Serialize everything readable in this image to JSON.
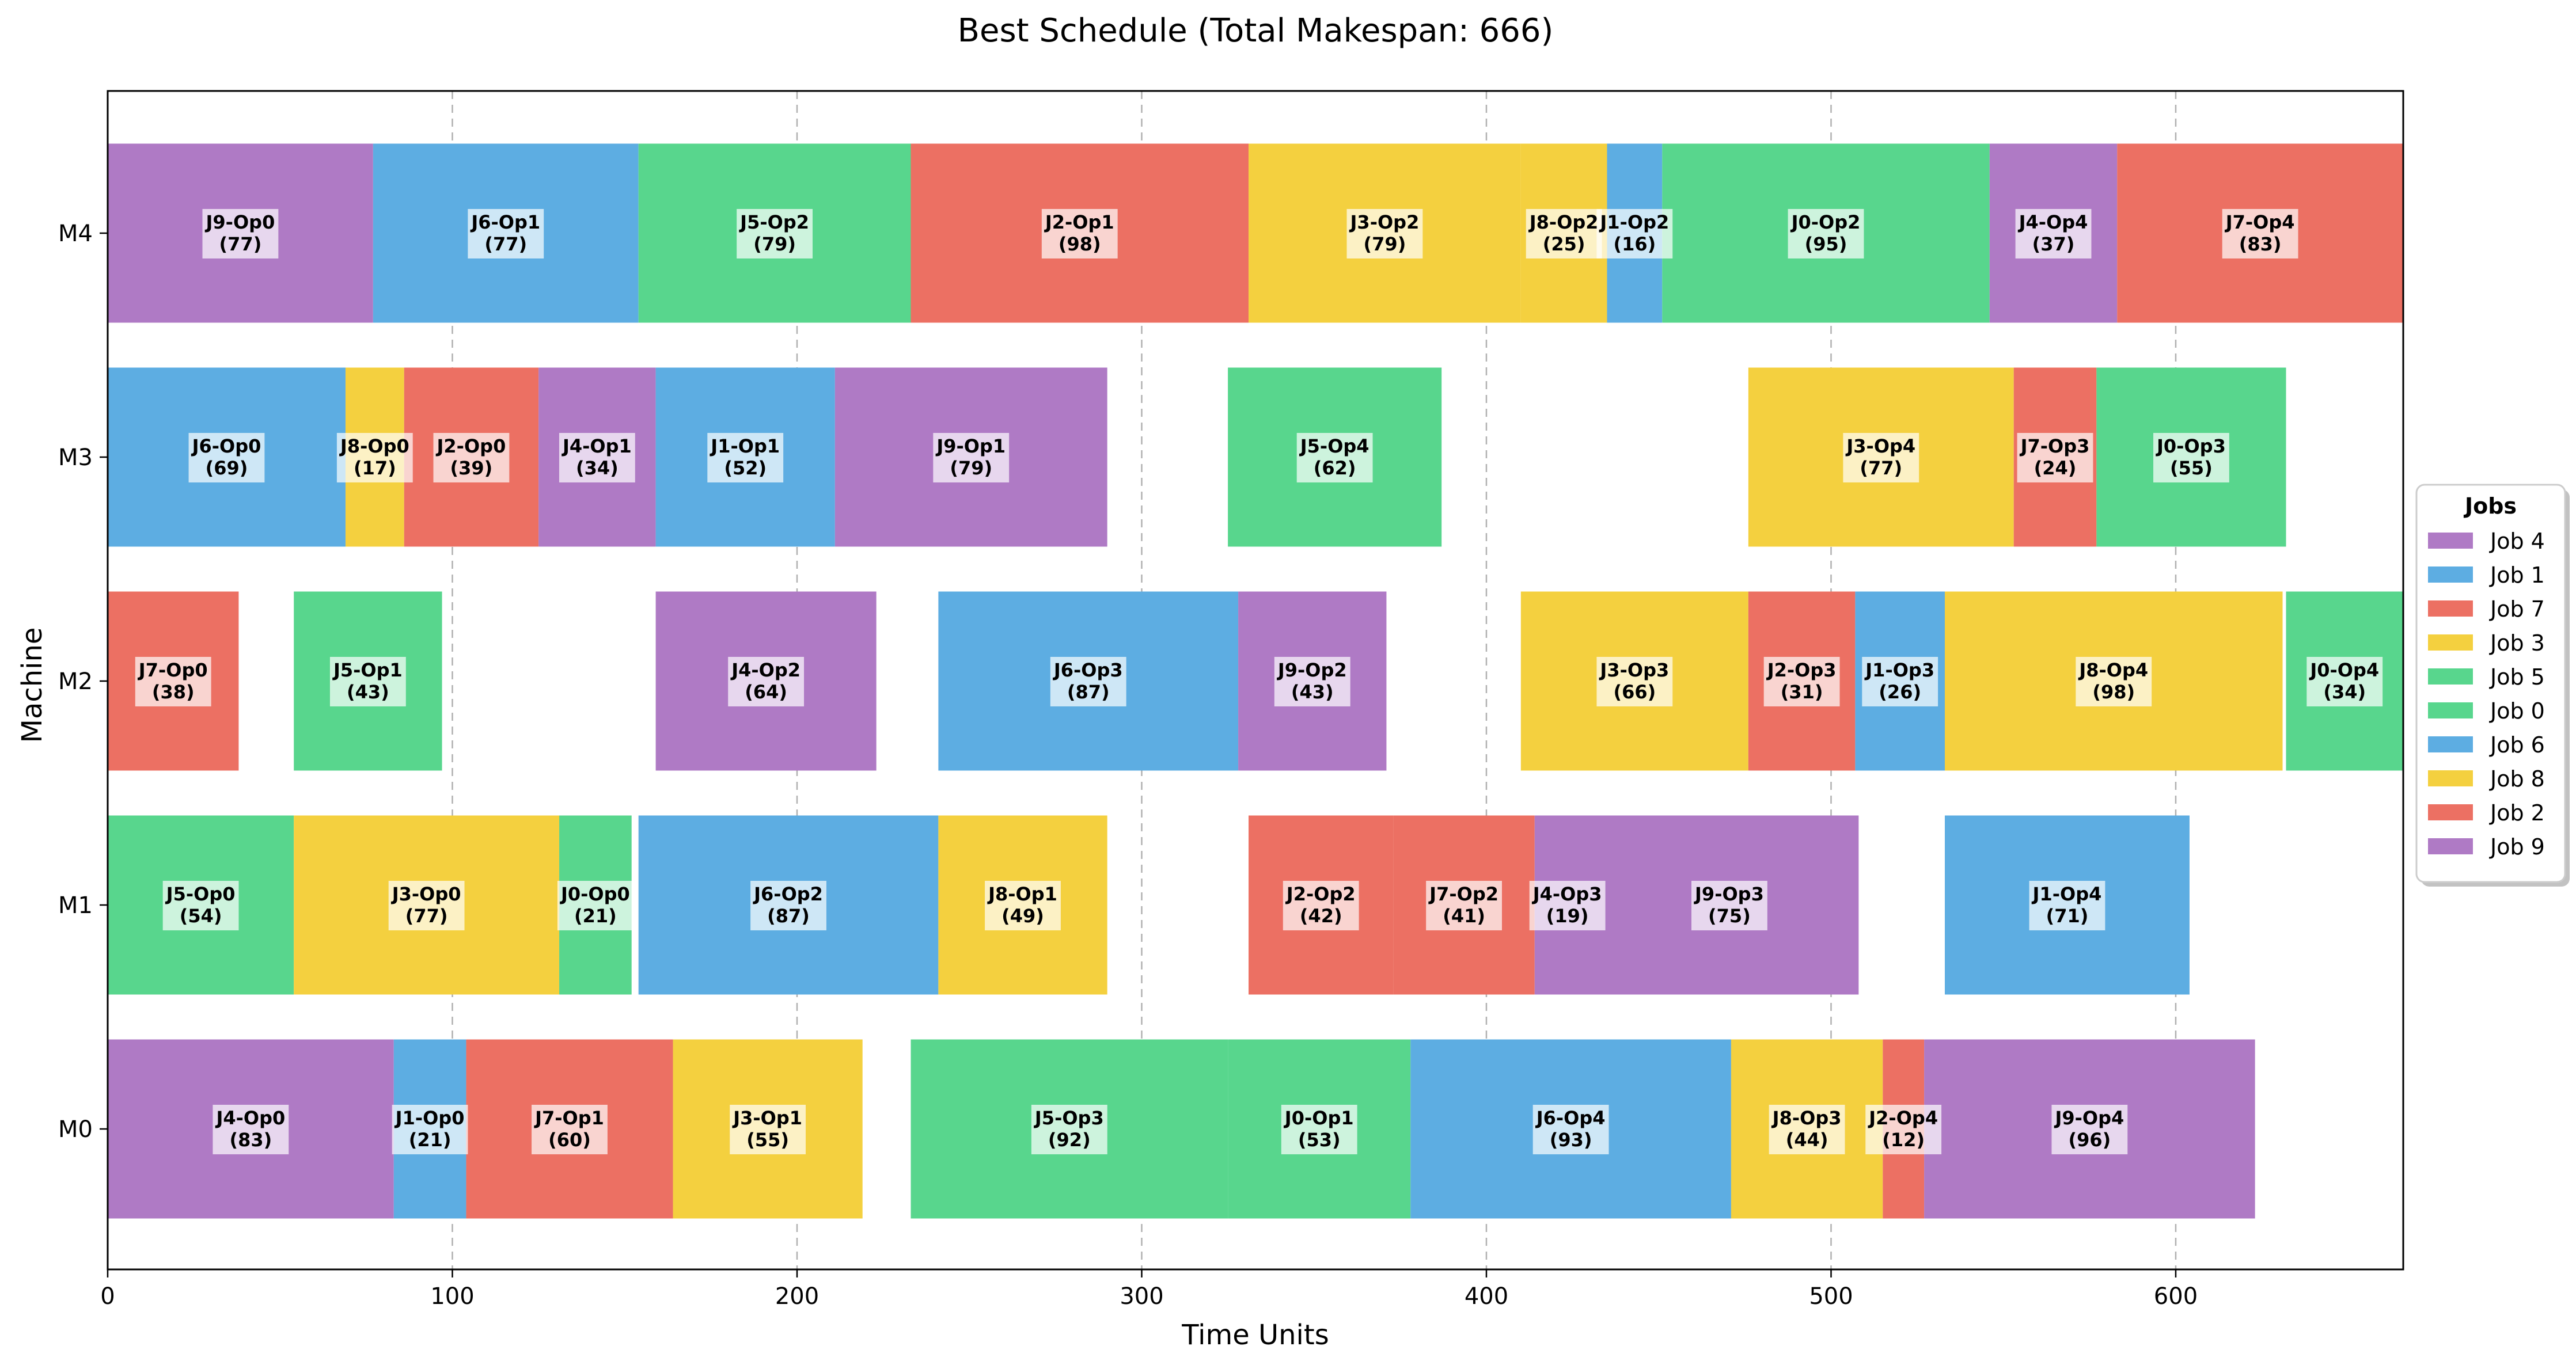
{
  "chart_data": {
    "type": "gantt",
    "title": "Best Schedule (Total Makespan: 666)",
    "xlabel": "Time Units",
    "ylabel": "Machine",
    "xlim": [
      0,
      666
    ],
    "xticks": [
      0,
      100,
      200,
      300,
      400,
      500,
      600
    ],
    "grid": "vertical-dashed",
    "machines": [
      "M0",
      "M1",
      "M2",
      "M3",
      "M4"
    ],
    "legend": {
      "title": "Jobs",
      "placement": "right",
      "entries": [
        {
          "label": "Job 4",
          "color": "#af7ac5"
        },
        {
          "label": "Job 1",
          "color": "#5dade2"
        },
        {
          "label": "Job 7",
          "color": "#ec7063"
        },
        {
          "label": "Job 3",
          "color": "#f4d03f"
        },
        {
          "label": "Job 5",
          "color": "#58d68d"
        },
        {
          "label": "Job 0",
          "color": "#58d68d"
        },
        {
          "label": "Job 6",
          "color": "#5dade2"
        },
        {
          "label": "Job 8",
          "color": "#f4d03f"
        },
        {
          "label": "Job 2",
          "color": "#ec7063"
        },
        {
          "label": "Job 9",
          "color": "#af7ac5"
        }
      ]
    },
    "operations": [
      {
        "machine": "M4",
        "start": 0,
        "duration": 77,
        "name": "J9-Op0",
        "dur_label": "(77)",
        "color": "#af7ac5"
      },
      {
        "machine": "M4",
        "start": 77,
        "duration": 77,
        "name": "J6-Op1",
        "dur_label": "(77)",
        "color": "#5dade2"
      },
      {
        "machine": "M4",
        "start": 154,
        "duration": 79,
        "name": "J5-Op2",
        "dur_label": "(79)",
        "color": "#58d68d"
      },
      {
        "machine": "M4",
        "start": 233,
        "duration": 98,
        "name": "J2-Op1",
        "dur_label": "(98)",
        "color": "#ec7063"
      },
      {
        "machine": "M4",
        "start": 331,
        "duration": 79,
        "name": "J3-Op2",
        "dur_label": "(79)",
        "color": "#f4d03f"
      },
      {
        "machine": "M4",
        "start": 410,
        "duration": 25,
        "name": "J8-Op2",
        "dur_label": "(25)",
        "color": "#f4d03f"
      },
      {
        "machine": "M4",
        "start": 435,
        "duration": 16,
        "name": "J1-Op2",
        "dur_label": "(16)",
        "color": "#5dade2"
      },
      {
        "machine": "M4",
        "start": 451,
        "duration": 95,
        "name": "J0-Op2",
        "dur_label": "(95)",
        "color": "#58d68d"
      },
      {
        "machine": "M4",
        "start": 546,
        "duration": 37,
        "name": "J4-Op4",
        "dur_label": "(37)",
        "color": "#af7ac5"
      },
      {
        "machine": "M4",
        "start": 583,
        "duration": 83,
        "name": "J7-Op4",
        "dur_label": "(83)",
        "color": "#ec7063"
      },
      {
        "machine": "M3",
        "start": 0,
        "duration": 69,
        "name": "J6-Op0",
        "dur_label": "(69)",
        "color": "#5dade2"
      },
      {
        "machine": "M3",
        "start": 69,
        "duration": 17,
        "name": "J8-Op0",
        "dur_label": "(17)",
        "color": "#f4d03f"
      },
      {
        "machine": "M3",
        "start": 86,
        "duration": 39,
        "name": "J2-Op0",
        "dur_label": "(39)",
        "color": "#ec7063"
      },
      {
        "machine": "M3",
        "start": 125,
        "duration": 34,
        "name": "J4-Op1",
        "dur_label": "(34)",
        "color": "#af7ac5"
      },
      {
        "machine": "M3",
        "start": 159,
        "duration": 52,
        "name": "J1-Op1",
        "dur_label": "(52)",
        "color": "#5dade2"
      },
      {
        "machine": "M3",
        "start": 211,
        "duration": 79,
        "name": "J9-Op1",
        "dur_label": "(79)",
        "color": "#af7ac5"
      },
      {
        "machine": "M3",
        "start": 325,
        "duration": 62,
        "name": "J5-Op4",
        "dur_label": "(62)",
        "color": "#58d68d"
      },
      {
        "machine": "M3",
        "start": 476,
        "duration": 77,
        "name": "J3-Op4",
        "dur_label": "(77)",
        "color": "#f4d03f"
      },
      {
        "machine": "M3",
        "start": 553,
        "duration": 24,
        "name": "J7-Op3",
        "dur_label": "(24)",
        "color": "#ec7063"
      },
      {
        "machine": "M3",
        "start": 577,
        "duration": 55,
        "name": "J0-Op3",
        "dur_label": "(55)",
        "color": "#58d68d"
      },
      {
        "machine": "M2",
        "start": 0,
        "duration": 38,
        "name": "J7-Op0",
        "dur_label": "(38)",
        "color": "#ec7063"
      },
      {
        "machine": "M2",
        "start": 54,
        "duration": 43,
        "name": "J5-Op1",
        "dur_label": "(43)",
        "color": "#58d68d"
      },
      {
        "machine": "M2",
        "start": 159,
        "duration": 64,
        "name": "J4-Op2",
        "dur_label": "(64)",
        "color": "#af7ac5"
      },
      {
        "machine": "M2",
        "start": 241,
        "duration": 87,
        "name": "J6-Op3",
        "dur_label": "(87)",
        "color": "#5dade2"
      },
      {
        "machine": "M2",
        "start": 328,
        "duration": 43,
        "name": "J9-Op2",
        "dur_label": "(43)",
        "color": "#af7ac5"
      },
      {
        "machine": "M2",
        "start": 410,
        "duration": 66,
        "name": "J3-Op3",
        "dur_label": "(66)",
        "color": "#f4d03f"
      },
      {
        "machine": "M2",
        "start": 476,
        "duration": 31,
        "name": "J2-Op3",
        "dur_label": "(31)",
        "color": "#ec7063"
      },
      {
        "machine": "M2",
        "start": 507,
        "duration": 26,
        "name": "J1-Op3",
        "dur_label": "(26)",
        "color": "#5dade2"
      },
      {
        "machine": "M2",
        "start": 533,
        "duration": 98,
        "name": "J8-Op4",
        "dur_label": "(98)",
        "color": "#f4d03f"
      },
      {
        "machine": "M2",
        "start": 632,
        "duration": 34,
        "name": "J0-Op4",
        "dur_label": "(34)",
        "color": "#58d68d"
      },
      {
        "machine": "M1",
        "start": 0,
        "duration": 54,
        "name": "J5-Op0",
        "dur_label": "(54)",
        "color": "#58d68d"
      },
      {
        "machine": "M1",
        "start": 54,
        "duration": 77,
        "name": "J3-Op0",
        "dur_label": "(77)",
        "color": "#f4d03f"
      },
      {
        "machine": "M1",
        "start": 131,
        "duration": 21,
        "name": "J0-Op0",
        "dur_label": "(21)",
        "color": "#58d68d"
      },
      {
        "machine": "M1",
        "start": 154,
        "duration": 87,
        "name": "J6-Op2",
        "dur_label": "(87)",
        "color": "#5dade2"
      },
      {
        "machine": "M1",
        "start": 241,
        "duration": 49,
        "name": "J8-Op1",
        "dur_label": "(49)",
        "color": "#f4d03f"
      },
      {
        "machine": "M1",
        "start": 331,
        "duration": 42,
        "name": "J2-Op2",
        "dur_label": "(42)",
        "color": "#ec7063"
      },
      {
        "machine": "M1",
        "start": 373,
        "duration": 41,
        "name": "J7-Op2",
        "dur_label": "(41)",
        "color": "#ec7063"
      },
      {
        "machine": "M1",
        "start": 414,
        "duration": 19,
        "name": "J4-Op3",
        "dur_label": "(19)",
        "color": "#af7ac5"
      },
      {
        "machine": "M1",
        "start": 433,
        "duration": 75,
        "name": "J9-Op3",
        "dur_label": "(75)",
        "color": "#af7ac5"
      },
      {
        "machine": "M1",
        "start": 533,
        "duration": 71,
        "name": "J1-Op4",
        "dur_label": "(71)",
        "color": "#5dade2"
      },
      {
        "machine": "M0",
        "start": 0,
        "duration": 83,
        "name": "J4-Op0",
        "dur_label": "(83)",
        "color": "#af7ac5"
      },
      {
        "machine": "M0",
        "start": 83,
        "duration": 21,
        "name": "J1-Op0",
        "dur_label": "(21)",
        "color": "#5dade2"
      },
      {
        "machine": "M0",
        "start": 104,
        "duration": 60,
        "name": "J7-Op1",
        "dur_label": "(60)",
        "color": "#ec7063"
      },
      {
        "machine": "M0",
        "start": 164,
        "duration": 55,
        "name": "J3-Op1",
        "dur_label": "(55)",
        "color": "#f4d03f"
      },
      {
        "machine": "M0",
        "start": 233,
        "duration": 92,
        "name": "J5-Op3",
        "dur_label": "(92)",
        "color": "#58d68d"
      },
      {
        "machine": "M0",
        "start": 325,
        "duration": 53,
        "name": "J0-Op1",
        "dur_label": "(53)",
        "color": "#58d68d"
      },
      {
        "machine": "M0",
        "start": 378,
        "duration": 93,
        "name": "J6-Op4",
        "dur_label": "(93)",
        "color": "#5dade2"
      },
      {
        "machine": "M0",
        "start": 471,
        "duration": 44,
        "name": "J8-Op3",
        "dur_label": "(44)",
        "color": "#f4d03f"
      },
      {
        "machine": "M0",
        "start": 515,
        "duration": 12,
        "name": "J2-Op4",
        "dur_label": "(12)",
        "color": "#ec7063"
      },
      {
        "machine": "M0",
        "start": 527,
        "duration": 96,
        "name": "J9-Op4",
        "dur_label": "(96)",
        "color": "#af7ac5"
      }
    ]
  }
}
